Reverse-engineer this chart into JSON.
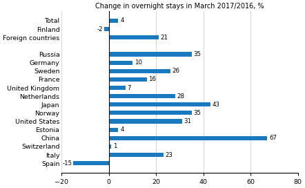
{
  "categories": [
    "Total",
    "Finland",
    "Foreign countries",
    "",
    "Russia",
    "Germany",
    "Sweden",
    "France",
    "United Kingdom",
    "Netherlands",
    "Japan",
    "Norway",
    "United States",
    "Estonia",
    "China",
    "Switzerland",
    "Italy",
    "Spain"
  ],
  "values": [
    4,
    -2,
    21,
    null,
    35,
    10,
    26,
    16,
    7,
    28,
    43,
    35,
    31,
    4,
    67,
    1,
    23,
    -15
  ],
  "bar_color": "#1a7abf",
  "xlim": [
    -20,
    80
  ],
  "xticks": [
    -20,
    0,
    20,
    40,
    60,
    80
  ],
  "title": "Change in overnight stays in March 2017/2016, %",
  "title_fontsize": 7.0,
  "label_fontsize": 6.8,
  "tick_fontsize": 6.8,
  "value_fontsize": 6.2,
  "bar_height": 0.5,
  "figsize": [
    4.42,
    2.72
  ],
  "dpi": 100
}
